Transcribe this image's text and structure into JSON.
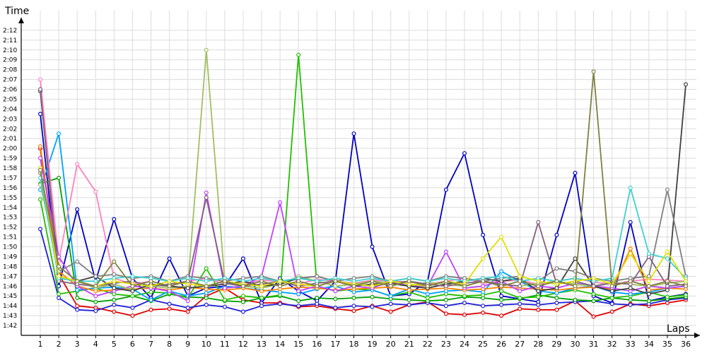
{
  "chart_data": {
    "type": "line",
    "ylabel": "Time",
    "xlabel": "Laps",
    "grid": true,
    "y_tick_labels": [
      "1:42",
      "1:43",
      "1:44",
      "1:45",
      "1:46",
      "1:47",
      "1:48",
      "1:49",
      "1:50",
      "1:51",
      "1:52",
      "1:53",
      "1:54",
      "1:55",
      "1:56",
      "1:57",
      "1:58",
      "1:59",
      "2:00",
      "2:01",
      "2:02",
      "2:03",
      "2:04",
      "2:05",
      "2:06",
      "2:07",
      "2:08",
      "2:09",
      "2:10",
      "2:11",
      "2:12"
    ],
    "y_tick_seconds": [
      102,
      103,
      104,
      105,
      106,
      107,
      108,
      109,
      110,
      111,
      112,
      113,
      114,
      115,
      116,
      117,
      118,
      119,
      120,
      121,
      122,
      123,
      124,
      125,
      126,
      127,
      128,
      129,
      130,
      131,
      132
    ],
    "x_tick_labels": [
      "1",
      "2",
      "3",
      "4",
      "5",
      "6",
      "7",
      "8",
      "9",
      "10",
      "11",
      "12",
      "13",
      "14",
      "15",
      "16",
      "17",
      "18",
      "19",
      "20",
      "21",
      "22",
      "23",
      "24",
      "25",
      "26",
      "27",
      "28",
      "29",
      "30",
      "31",
      "32",
      "33",
      "34",
      "35",
      "36"
    ],
    "ylim_seconds": [
      101,
      134
    ],
    "xlim": [
      0.5,
      36.5
    ],
    "series": [
      {
        "color": "#e00000",
        "values": [
          120.0,
          107.2,
          104.0,
          103.8,
          103.4,
          103.0,
          103.6,
          103.7,
          103.4,
          105.0,
          105.8,
          104.6,
          104.3,
          104.3,
          103.9,
          104.0,
          103.7,
          103.5,
          104.0,
          103.4,
          104.1,
          104.4,
          103.2,
          103.1,
          103.3,
          103.0,
          103.7,
          103.6,
          103.6,
          104.5,
          102.9,
          103.4,
          104.2,
          104.0,
          104.3,
          104.6
        ]
      },
      {
        "color": "#0000c0",
        "values": [
          123.5,
          106.0,
          113.8,
          106.5,
          112.8,
          106.8,
          104.8,
          108.8,
          105.0,
          105.8,
          106.0,
          108.8,
          104.3,
          106.8,
          105.5,
          104.5,
          106.5,
          121.5,
          110.0,
          105.0,
          105.2,
          106.5,
          115.8,
          119.5,
          111.2,
          105.0,
          104.7,
          104.4,
          111.2,
          117.5,
          105.0,
          104.3,
          112.5,
          104.5,
          104.9,
          105.2
        ]
      },
      {
        "color": "#1f1fd8",
        "values": [
          111.8,
          104.8,
          103.6,
          103.5,
          104.1,
          103.8,
          104.6,
          104.2,
          103.8,
          104.1,
          103.9,
          103.4,
          104.0,
          104.2,
          104.0,
          104.2,
          103.8,
          104.0,
          103.9,
          104.2,
          104.1,
          104.3,
          104.0,
          104.3,
          104.0,
          104.1,
          104.2,
          104.1,
          104.3,
          104.4,
          104.5,
          104.2,
          104.1,
          104.2,
          104.6,
          104.8
        ]
      },
      {
        "color": "#00a000",
        "values": [
          116.4,
          117.0,
          104.8,
          104.4,
          104.6,
          105.0,
          104.5,
          105.2,
          104.9,
          104.8,
          104.5,
          104.4,
          104.8,
          105.0,
          104.5,
          104.8,
          104.7,
          104.8,
          104.9,
          104.7,
          104.6,
          104.5,
          104.6,
          104.9,
          104.8,
          104.6,
          104.7,
          105.1,
          104.8,
          104.6,
          104.5,
          104.8,
          104.6,
          104.5,
          104.7,
          104.9
        ]
      },
      {
        "color": "#22c000",
        "values": [
          114.8,
          105.2,
          105.5,
          105.8,
          105.2,
          105.0,
          105.4,
          105.3,
          104.8,
          107.8,
          104.6,
          105.0,
          104.8,
          105.1,
          129.5,
          106.0,
          105.5,
          105.7,
          105.6,
          105.0,
          105.4,
          104.8,
          105.2,
          105.0,
          105.1,
          105.5,
          104.8,
          104.9,
          105.3,
          105.6,
          105.2,
          104.8,
          105.0,
          105.4,
          104.9,
          105.1
        ]
      },
      {
        "color": "#00a0ff",
        "values": [
          115.8,
          121.5,
          105.6,
          105.8,
          105.9,
          105.7,
          104.6,
          105.5,
          105.0,
          105.3,
          106.0,
          105.8,
          105.6,
          105.4,
          105.2,
          105.7,
          106.0,
          105.4,
          105.6,
          105.0,
          105.7,
          105.2,
          105.5,
          105.6,
          105.4,
          107.5,
          106.5,
          105.5,
          105.3,
          105.8,
          106.0,
          105.4,
          105.2,
          105.4,
          105.8,
          106.0
        ]
      },
      {
        "color": "#ff80c0",
        "values": [
          127.0,
          108.5,
          118.4,
          115.6,
          106.8,
          106.2,
          106.5,
          106.0,
          106.5,
          106.8,
          106.2,
          106.3,
          106.6,
          106.5,
          106.2,
          106.7,
          106.5,
          106.3,
          106.6,
          106.5,
          106.4,
          106.2,
          106.5,
          106.8,
          106.3,
          106.5,
          106.6,
          106.2,
          106.5,
          106.8,
          106.4,
          106.2,
          106.5,
          106.7,
          106.6,
          106.5
        ]
      },
      {
        "color": "#ff8000",
        "values": [
          120.2,
          107.5,
          106.0,
          105.5,
          105.6,
          105.7,
          105.8,
          105.6,
          105.9,
          105.7,
          105.6,
          105.8,
          105.5,
          105.7,
          105.9,
          105.8,
          105.6,
          105.7,
          105.8,
          105.9,
          105.6,
          105.7,
          105.8,
          105.6,
          105.7,
          105.9,
          105.8,
          105.7,
          105.6,
          105.8,
          105.9,
          105.7,
          109.8,
          105.6,
          105.8,
          105.7
        ]
      },
      {
        "color": "#c040ff",
        "values": [
          119.0,
          109.0,
          106.0,
          105.0,
          105.5,
          106.0,
          105.8,
          105.5,
          104.5,
          115.5,
          105.8,
          106.0,
          107.0,
          114.5,
          105.5,
          106.0,
          105.5,
          106.0,
          105.8,
          106.5,
          106.0,
          106.0,
          109.5,
          105.8,
          106.0,
          106.5,
          105.5,
          106.0,
          105.8,
          106.3,
          106.0,
          105.8,
          105.5,
          106.0,
          105.8,
          106.0
        ]
      },
      {
        "color": "#a0c060",
        "values": [
          116.3,
          108.0,
          106.5,
          105.8,
          106.2,
          105.6,
          106.0,
          105.8,
          106.0,
          130.0,
          106.5,
          106.0,
          105.8,
          106.2,
          107.0,
          106.5,
          106.0,
          106.2,
          106.5,
          106.3,
          106.0,
          106.4,
          106.2,
          106.0,
          106.5,
          106.2,
          106.0,
          106.3,
          106.5,
          106.2,
          106.0,
          106.4,
          106.2,
          106.0,
          106.3,
          106.5
        ]
      },
      {
        "color": "#404040",
        "values": [
          125.8,
          107.0,
          106.5,
          107.0,
          105.8,
          105.5,
          106.2,
          106.0,
          105.8,
          106.0,
          106.2,
          106.5,
          106.0,
          106.2,
          106.8,
          107.0,
          106.5,
          106.0,
          106.2,
          106.3,
          106.0,
          105.8,
          106.2,
          106.5,
          106.8,
          106.5,
          106.8,
          105.5,
          105.8,
          108.8,
          106.0,
          105.5,
          105.8,
          105.2,
          105.6,
          126.5
        ]
      },
      {
        "color": "#808080",
        "values": [
          117.5,
          107.5,
          108.5,
          107.0,
          107.2,
          106.8,
          107.0,
          106.5,
          107.0,
          106.8,
          106.5,
          106.8,
          107.0,
          106.5,
          106.8,
          107.0,
          106.5,
          106.8,
          107.0,
          106.5,
          106.8,
          106.5,
          107.0,
          106.8,
          106.5,
          106.8,
          107.0,
          106.5,
          107.8,
          107.5,
          106.8,
          106.5,
          106.8,
          107.0,
          115.8,
          107.0
        ]
      },
      {
        "color": "#806080",
        "values": [
          126.0,
          106.5,
          106.2,
          106.0,
          106.3,
          106.5,
          106.0,
          106.2,
          106.5,
          115.0,
          106.3,
          106.0,
          106.2,
          106.5,
          106.0,
          106.3,
          106.5,
          106.2,
          106.0,
          106.3,
          106.5,
          106.2,
          106.0,
          106.3,
          106.5,
          106.2,
          106.0,
          112.5,
          106.2,
          106.5,
          106.0,
          106.3,
          106.2,
          109.0,
          106.0,
          106.2
        ]
      },
      {
        "color": "#40d0d0",
        "values": [
          117.0,
          106.8,
          106.5,
          106.5,
          106.8,
          107.0,
          106.8,
          106.5,
          106.8,
          106.5,
          106.8,
          106.5,
          106.8,
          106.5,
          106.8,
          106.5,
          106.8,
          106.5,
          106.8,
          106.5,
          106.8,
          106.5,
          106.8,
          106.5,
          106.8,
          107.0,
          106.5,
          106.8,
          106.5,
          106.8,
          106.5,
          106.8,
          116.0,
          109.3,
          108.8,
          106.8
        ]
      },
      {
        "color": "#e0e000",
        "values": [
          118.0,
          107.0,
          106.5,
          106.0,
          106.5,
          106.2,
          106.0,
          106.5,
          106.2,
          106.0,
          106.5,
          106.2,
          106.0,
          106.5,
          106.2,
          106.0,
          106.5,
          106.2,
          106.0,
          106.5,
          106.2,
          106.0,
          106.5,
          106.2,
          108.8,
          111.0,
          107.0,
          106.5,
          106.2,
          106.5,
          106.8,
          106.2,
          109.3,
          106.5,
          109.5,
          106.5
        ]
      },
      {
        "color": "#808040",
        "values": [
          117.8,
          108.0,
          106.5,
          106.0,
          108.5,
          106.0,
          106.5,
          106.0,
          106.5,
          106.0,
          106.5,
          106.0,
          106.5,
          106.0,
          106.5,
          106.0,
          106.5,
          106.0,
          106.5,
          106.0,
          106.5,
          106.0,
          106.5,
          106.0,
          106.5,
          106.0,
          106.5,
          106.0,
          106.5,
          106.0,
          127.8,
          106.0,
          106.5,
          106.0,
          106.5,
          106.0
        ]
      }
    ]
  }
}
